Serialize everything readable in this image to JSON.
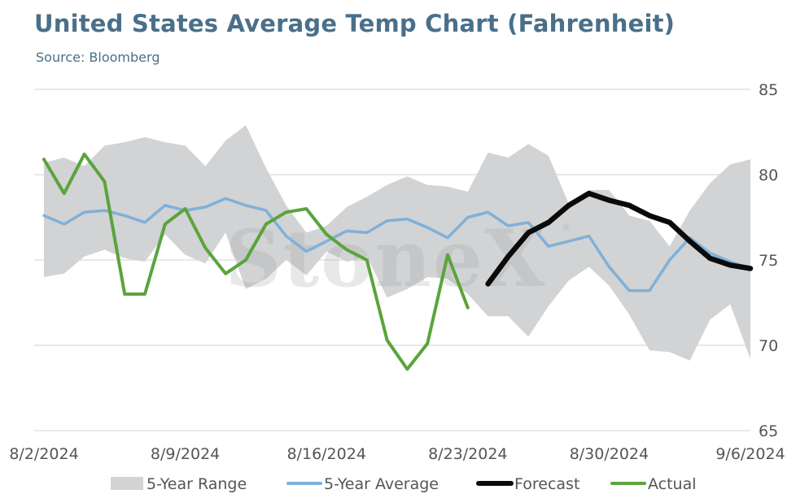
{
  "header": {
    "title": "United States Average Temp Chart (Fahrenheit)",
    "subtitle": "Source: Bloomberg"
  },
  "watermark": {
    "text": "StoneX",
    "mark": "®"
  },
  "chart_data": {
    "type": "line",
    "title": "United States Average Temp Chart (Fahrenheit)",
    "xlabel": "",
    "ylabel": "",
    "x_start": "2024-08-02",
    "x_end": "2024-09-06",
    "x_tick_labels": [
      "8/2/2024",
      "8/9/2024",
      "8/16/2024",
      "8/23/2024",
      "8/30/2024",
      "9/6/2024"
    ],
    "y_ticks": [
      65,
      70,
      75,
      80,
      85
    ],
    "ylim": [
      65,
      85
    ],
    "y_axis_side": "right",
    "grid": true,
    "legend_position": "bottom",
    "colors": {
      "range": "#d2d3d4",
      "average": "#7fb0d9",
      "forecast": "#0a0a0a",
      "actual": "#5aa43d",
      "grid": "#d9d9d9"
    },
    "range_series": {
      "name": "5-Year Range",
      "x": [
        "2024-08-02",
        "2024-08-03",
        "2024-08-04",
        "2024-08-05",
        "2024-08-06",
        "2024-08-07",
        "2024-08-08",
        "2024-08-09",
        "2024-08-10",
        "2024-08-11",
        "2024-08-12",
        "2024-08-13",
        "2024-08-14",
        "2024-08-15",
        "2024-08-16",
        "2024-08-17",
        "2024-08-18",
        "2024-08-19",
        "2024-08-20",
        "2024-08-21",
        "2024-08-22",
        "2024-08-23",
        "2024-08-24",
        "2024-08-25",
        "2024-08-26",
        "2024-08-27",
        "2024-08-28",
        "2024-08-29",
        "2024-08-30",
        "2024-08-31",
        "2024-09-01",
        "2024-09-02",
        "2024-09-03",
        "2024-09-04",
        "2024-09-05",
        "2024-09-06"
      ],
      "high": [
        80.7,
        81.0,
        80.5,
        81.7,
        81.9,
        82.2,
        81.9,
        81.7,
        80.5,
        82.0,
        82.9,
        80.4,
        78.2,
        76.6,
        77.0,
        78.1,
        78.7,
        79.4,
        79.9,
        79.4,
        79.3,
        79.0,
        81.3,
        81.0,
        81.8,
        81.1,
        78.3,
        79.1,
        79.1,
        77.6,
        77.3,
        75.8,
        77.9,
        79.5,
        80.6,
        80.9
      ],
      "low": [
        74.0,
        74.2,
        75.2,
        75.6,
        75.1,
        74.9,
        76.5,
        75.3,
        74.8,
        76.6,
        73.3,
        73.9,
        75.0,
        74.1,
        75.5,
        74.9,
        75.2,
        72.8,
        73.3,
        74.0,
        73.9,
        73.0,
        71.7,
        71.7,
        70.5,
        72.3,
        73.8,
        74.6,
        73.5,
        71.8,
        69.7,
        69.6,
        69.1,
        71.5,
        72.4,
        69.2
      ]
    },
    "series": [
      {
        "name": "5-Year Average",
        "x": [
          "2024-08-02",
          "2024-08-03",
          "2024-08-04",
          "2024-08-05",
          "2024-08-06",
          "2024-08-07",
          "2024-08-08",
          "2024-08-09",
          "2024-08-10",
          "2024-08-11",
          "2024-08-12",
          "2024-08-13",
          "2024-08-14",
          "2024-08-15",
          "2024-08-16",
          "2024-08-17",
          "2024-08-18",
          "2024-08-19",
          "2024-08-20",
          "2024-08-21",
          "2024-08-22",
          "2024-08-23",
          "2024-08-24",
          "2024-08-25",
          "2024-08-26",
          "2024-08-27",
          "2024-08-28",
          "2024-08-29",
          "2024-08-30",
          "2024-08-31",
          "2024-09-01",
          "2024-09-02",
          "2024-09-03",
          "2024-09-04",
          "2024-09-05",
          "2024-09-06"
        ],
        "values": [
          77.6,
          77.1,
          77.8,
          77.9,
          77.6,
          77.2,
          78.2,
          77.9,
          78.1,
          78.6,
          78.2,
          77.9,
          76.4,
          75.5,
          76.1,
          76.7,
          76.6,
          77.3,
          77.4,
          76.9,
          76.3,
          77.5,
          77.8,
          77.0,
          77.2,
          75.8,
          76.1,
          76.4,
          74.6,
          73.2,
          73.2,
          75.0,
          76.3,
          75.4,
          74.9,
          74.5
        ]
      },
      {
        "name": "Forecast",
        "x": [
          "2024-08-24",
          "2024-08-25",
          "2024-08-26",
          "2024-08-27",
          "2024-08-28",
          "2024-08-29",
          "2024-08-30",
          "2024-08-31",
          "2024-09-01",
          "2024-09-02",
          "2024-09-03",
          "2024-09-04",
          "2024-09-05",
          "2024-09-06"
        ],
        "values": [
          73.6,
          75.2,
          76.6,
          77.2,
          78.2,
          78.9,
          78.5,
          78.2,
          77.6,
          77.2,
          76.1,
          75.1,
          74.7,
          74.5
        ]
      },
      {
        "name": "Actual",
        "x": [
          "2024-08-02",
          "2024-08-03",
          "2024-08-04",
          "2024-08-05",
          "2024-08-06",
          "2024-08-07",
          "2024-08-08",
          "2024-08-09",
          "2024-08-10",
          "2024-08-11",
          "2024-08-12",
          "2024-08-13",
          "2024-08-14",
          "2024-08-15",
          "2024-08-16",
          "2024-08-17",
          "2024-08-18",
          "2024-08-19",
          "2024-08-20",
          "2024-08-21",
          "2024-08-22",
          "2024-08-23"
        ],
        "values": [
          80.9,
          78.9,
          81.2,
          79.6,
          73.0,
          73.0,
          77.1,
          78.0,
          75.7,
          74.2,
          75.0,
          77.1,
          77.8,
          78.0,
          76.5,
          75.6,
          75.0,
          70.3,
          68.6,
          70.1,
          75.3,
          72.2
        ]
      }
    ]
  }
}
